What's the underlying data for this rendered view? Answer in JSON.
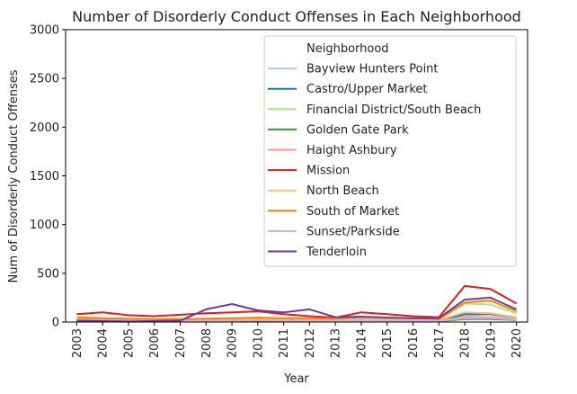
{
  "chart_data": {
    "type": "line",
    "title": "Number of Disorderly Conduct Offenses in Each Neighborhood",
    "xlabel": "Year",
    "ylabel": "Num of Disorderly Conduct Offenses",
    "ylim": [
      0,
      3000
    ],
    "yticks": [
      "0",
      "500",
      "1000",
      "1500",
      "2000",
      "2500",
      "3000"
    ],
    "x": [
      "2003",
      "2004",
      "2005",
      "2006",
      "2007",
      "2008",
      "2009",
      "2010",
      "2011",
      "2012",
      "2013",
      "2014",
      "2015",
      "2016",
      "2017",
      "2018",
      "2019",
      "2020"
    ],
    "grid": false,
    "legend": {
      "title": "Neighborhood",
      "placement": "top-right"
    },
    "series": [
      {
        "name": "Bayview Hunters Point",
        "color": "#a6cee3",
        "values": [
          30,
          20,
          15,
          12,
          10,
          15,
          20,
          25,
          20,
          20,
          15,
          25,
          20,
          20,
          15,
          60,
          80,
          40
        ]
      },
      {
        "name": "Castro/Upper Market",
        "color": "#1f78b4",
        "values": [
          20,
          18,
          15,
          12,
          10,
          12,
          15,
          20,
          15,
          15,
          10,
          15,
          12,
          12,
          10,
          80,
          80,
          50
        ]
      },
      {
        "name": "Financial District/South Beach",
        "color": "#b2df8a",
        "values": [
          40,
          30,
          25,
          20,
          20,
          25,
          30,
          35,
          30,
          30,
          25,
          40,
          35,
          30,
          25,
          190,
          180,
          90
        ]
      },
      {
        "name": "Golden Gate Park",
        "color": "#33a02c",
        "values": [
          10,
          10,
          8,
          8,
          6,
          8,
          10,
          12,
          10,
          10,
          8,
          10,
          10,
          8,
          8,
          30,
          30,
          20
        ]
      },
      {
        "name": "Haight Ashbury",
        "color": "#fb9a99",
        "values": [
          25,
          20,
          18,
          15,
          12,
          15,
          20,
          25,
          20,
          20,
          15,
          20,
          18,
          15,
          15,
          50,
          50,
          30
        ]
      },
      {
        "name": "Mission",
        "color": "#e31a1c",
        "values": [
          80,
          100,
          70,
          60,
          75,
          90,
          100,
          110,
          80,
          60,
          45,
          100,
          80,
          60,
          50,
          370,
          340,
          190
        ]
      },
      {
        "name": "North Beach",
        "color": "#fdbf6f",
        "values": [
          30,
          25,
          20,
          18,
          15,
          20,
          25,
          30,
          25,
          25,
          20,
          30,
          25,
          25,
          20,
          100,
          90,
          50
        ]
      },
      {
        "name": "South of Market",
        "color": "#ff7f00",
        "values": [
          50,
          40,
          35,
          30,
          30,
          35,
          40,
          45,
          40,
          40,
          35,
          50,
          45,
          40,
          30,
          200,
          220,
          110
        ]
      },
      {
        "name": "Sunset/Parkside",
        "color": "#cab2d6",
        "values": [
          20,
          15,
          12,
          10,
          10,
          12,
          15,
          18,
          15,
          15,
          12,
          15,
          12,
          12,
          10,
          40,
          40,
          25
        ]
      },
      {
        "name": "Tenderloin",
        "color": "#6a3d9a",
        "values": [
          15,
          10,
          5,
          10,
          15,
          130,
          185,
          120,
          100,
          130,
          50,
          55,
          45,
          40,
          40,
          230,
          250,
          130
        ]
      }
    ]
  }
}
